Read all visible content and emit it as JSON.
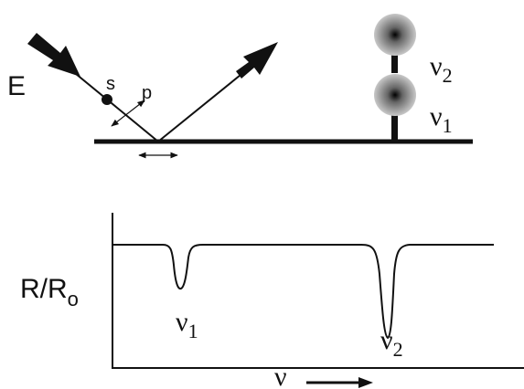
{
  "top": {
    "field_label": "E",
    "s_label": "s",
    "p_label": "p",
    "upper_mode": {
      "symbol": "ν",
      "sub": "2"
    },
    "lower_mode": {
      "symbol": "ν",
      "sub": "1"
    }
  },
  "spectrum": {
    "y_label": {
      "main": "R/R",
      "sub": "o"
    },
    "peak_1": {
      "symbol": "ν",
      "sub": "1"
    },
    "peak_2": {
      "symbol": "ν",
      "sub": "2"
    },
    "x_label": "ν"
  }
}
